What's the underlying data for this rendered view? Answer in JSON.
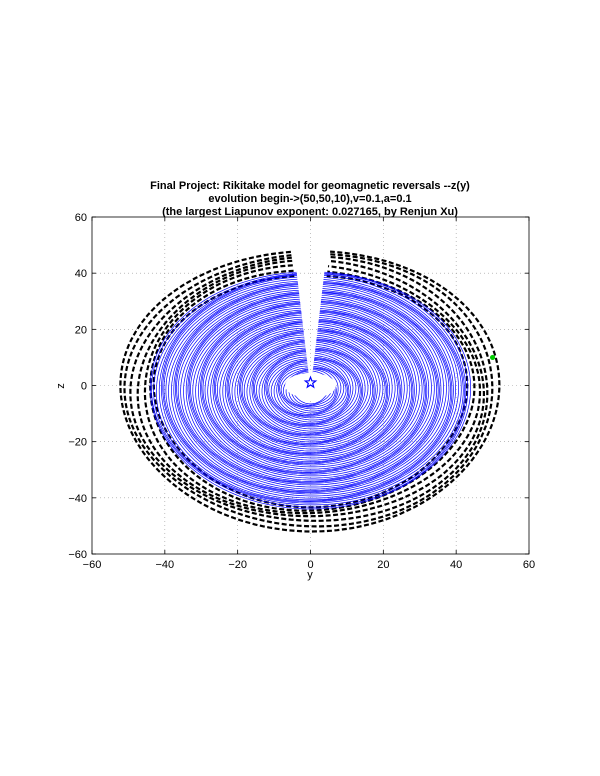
{
  "chart_data": {
    "type": "line",
    "title_lines": [
      "Final Project: Rikitake model for geomagnetic reversals --z(y)",
      "evolution begin->(50,50,10),v=0.1,a=0.1",
      "(the largest Liapunov exponent: 0.027165, by Renjun Xu)"
    ],
    "xlabel": "y",
    "ylabel": "z",
    "xlim": [
      -60,
      60
    ],
    "ylim": [
      -60,
      60
    ],
    "xticks": [
      -60,
      -40,
      -20,
      0,
      20,
      40,
      60
    ],
    "yticks": [
      -60,
      -40,
      -20,
      0,
      20,
      40,
      60
    ],
    "x_tick_labels": [
      "−60",
      "−40",
      "−20",
      "0",
      "20",
      "40",
      "60"
    ],
    "y_tick_labels": [
      "−60",
      "−40",
      "−20",
      "0",
      "20",
      "40",
      "60"
    ],
    "grid": true,
    "series": [
      {
        "style": "dashed",
        "color": "#000000",
        "description_data": {
          "r_inner": 43,
          "r_outer": 52,
          "gap_center_deg": 90,
          "gap_half_width_deg": 6
        }
      },
      {
        "style": "solid",
        "color": "#0000ff",
        "description_data": {
          "r_inner": 5,
          "r_outer": 44,
          "gap_center_deg": 90,
          "gap_half_width_deg": 5,
          "hole_rx": 7,
          "hole_ry": 4.5
        }
      }
    ],
    "markers": [
      {
        "symbol": "star",
        "x": 0,
        "y": 1,
        "color": "#0000ff"
      },
      {
        "symbol": "circle",
        "x": 50,
        "y": 10,
        "color": "#00cc00"
      }
    ]
  }
}
